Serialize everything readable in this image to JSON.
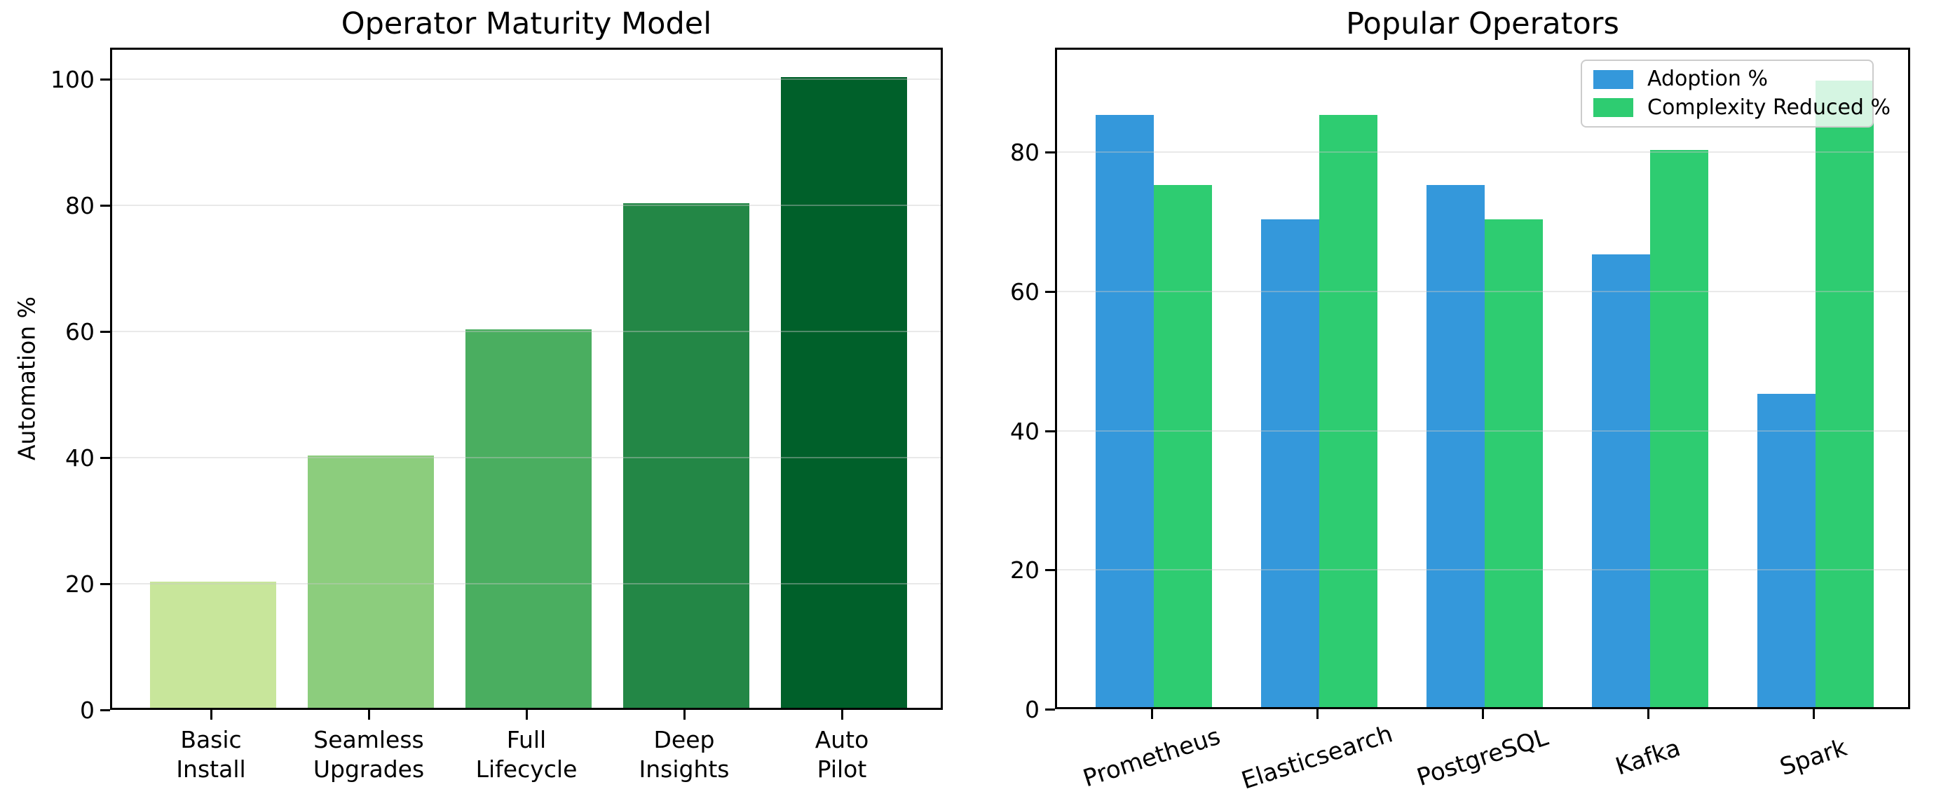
{
  "figure": {
    "background": "#ffffff",
    "grid_color": "#e6e6e6",
    "spine_color": "#000000"
  },
  "chart_data": [
    {
      "type": "bar",
      "title": "Operator Maturity Model",
      "xlabel": "",
      "ylabel": "Automation %",
      "categories": [
        "Basic\nInstall",
        "Seamless\nUpgrades",
        "Full\nLifecycle",
        "Deep\nInsights",
        "Auto\nPilot"
      ],
      "values": [
        20,
        40,
        60,
        80,
        100
      ],
      "bar_colors": [
        "#c8e69b",
        "#8ccd7d",
        "#4aae60",
        "#238746",
        "#00602a"
      ],
      "ylim": [
        0,
        105
      ],
      "yticks": [
        0,
        20,
        40,
        60,
        80,
        100
      ],
      "grid": "horizontal",
      "legend_position": "none"
    },
    {
      "type": "grouped_bar",
      "title": "Popular Operators",
      "xlabel": "",
      "ylabel": "",
      "categories": [
        "Prometheus",
        "Elasticsearch",
        "PostgreSQL",
        "Kafka",
        "Spark"
      ],
      "series": [
        {
          "name": "Adoption %",
          "color": "#3498db",
          "values": [
            85,
            70,
            75,
            65,
            45
          ]
        },
        {
          "name": "Complexity Reduced %",
          "color": "#2ecc71",
          "values": [
            75,
            85,
            70,
            80,
            90
          ]
        }
      ],
      "ylim": [
        0,
        95
      ],
      "yticks": [
        0,
        20,
        40,
        60,
        80
      ],
      "grid": "horizontal",
      "legend_position": "upper right",
      "xtick_rotation_deg": 18
    }
  ]
}
